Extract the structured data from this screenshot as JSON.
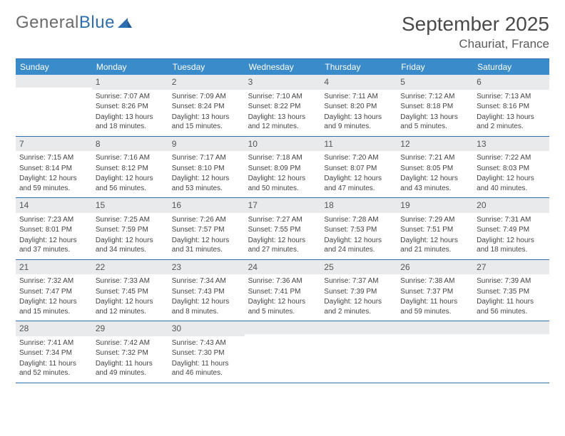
{
  "brand": {
    "part1": "General",
    "part2": "Blue"
  },
  "title": "September 2025",
  "location": "Chauriat, France",
  "colors": {
    "header_bg": "#3a8bc9",
    "border": "#2f6fb0",
    "daynum_bg": "#e9eaeb",
    "text": "#444444",
    "title_text": "#4a4a4a"
  },
  "weekdays": [
    "Sunday",
    "Monday",
    "Tuesday",
    "Wednesday",
    "Thursday",
    "Friday",
    "Saturday"
  ],
  "weeks": [
    [
      null,
      {
        "n": "1",
        "sunrise": "Sunrise: 7:07 AM",
        "sunset": "Sunset: 8:26 PM",
        "daylight": "Daylight: 13 hours and 18 minutes."
      },
      {
        "n": "2",
        "sunrise": "Sunrise: 7:09 AM",
        "sunset": "Sunset: 8:24 PM",
        "daylight": "Daylight: 13 hours and 15 minutes."
      },
      {
        "n": "3",
        "sunrise": "Sunrise: 7:10 AM",
        "sunset": "Sunset: 8:22 PM",
        "daylight": "Daylight: 13 hours and 12 minutes."
      },
      {
        "n": "4",
        "sunrise": "Sunrise: 7:11 AM",
        "sunset": "Sunset: 8:20 PM",
        "daylight": "Daylight: 13 hours and 9 minutes."
      },
      {
        "n": "5",
        "sunrise": "Sunrise: 7:12 AM",
        "sunset": "Sunset: 8:18 PM",
        "daylight": "Daylight: 13 hours and 5 minutes."
      },
      {
        "n": "6",
        "sunrise": "Sunrise: 7:13 AM",
        "sunset": "Sunset: 8:16 PM",
        "daylight": "Daylight: 13 hours and 2 minutes."
      }
    ],
    [
      {
        "n": "7",
        "sunrise": "Sunrise: 7:15 AM",
        "sunset": "Sunset: 8:14 PM",
        "daylight": "Daylight: 12 hours and 59 minutes."
      },
      {
        "n": "8",
        "sunrise": "Sunrise: 7:16 AM",
        "sunset": "Sunset: 8:12 PM",
        "daylight": "Daylight: 12 hours and 56 minutes."
      },
      {
        "n": "9",
        "sunrise": "Sunrise: 7:17 AM",
        "sunset": "Sunset: 8:10 PM",
        "daylight": "Daylight: 12 hours and 53 minutes."
      },
      {
        "n": "10",
        "sunrise": "Sunrise: 7:18 AM",
        "sunset": "Sunset: 8:09 PM",
        "daylight": "Daylight: 12 hours and 50 minutes."
      },
      {
        "n": "11",
        "sunrise": "Sunrise: 7:20 AM",
        "sunset": "Sunset: 8:07 PM",
        "daylight": "Daylight: 12 hours and 47 minutes."
      },
      {
        "n": "12",
        "sunrise": "Sunrise: 7:21 AM",
        "sunset": "Sunset: 8:05 PM",
        "daylight": "Daylight: 12 hours and 43 minutes."
      },
      {
        "n": "13",
        "sunrise": "Sunrise: 7:22 AM",
        "sunset": "Sunset: 8:03 PM",
        "daylight": "Daylight: 12 hours and 40 minutes."
      }
    ],
    [
      {
        "n": "14",
        "sunrise": "Sunrise: 7:23 AM",
        "sunset": "Sunset: 8:01 PM",
        "daylight": "Daylight: 12 hours and 37 minutes."
      },
      {
        "n": "15",
        "sunrise": "Sunrise: 7:25 AM",
        "sunset": "Sunset: 7:59 PM",
        "daylight": "Daylight: 12 hours and 34 minutes."
      },
      {
        "n": "16",
        "sunrise": "Sunrise: 7:26 AM",
        "sunset": "Sunset: 7:57 PM",
        "daylight": "Daylight: 12 hours and 31 minutes."
      },
      {
        "n": "17",
        "sunrise": "Sunrise: 7:27 AM",
        "sunset": "Sunset: 7:55 PM",
        "daylight": "Daylight: 12 hours and 27 minutes."
      },
      {
        "n": "18",
        "sunrise": "Sunrise: 7:28 AM",
        "sunset": "Sunset: 7:53 PM",
        "daylight": "Daylight: 12 hours and 24 minutes."
      },
      {
        "n": "19",
        "sunrise": "Sunrise: 7:29 AM",
        "sunset": "Sunset: 7:51 PM",
        "daylight": "Daylight: 12 hours and 21 minutes."
      },
      {
        "n": "20",
        "sunrise": "Sunrise: 7:31 AM",
        "sunset": "Sunset: 7:49 PM",
        "daylight": "Daylight: 12 hours and 18 minutes."
      }
    ],
    [
      {
        "n": "21",
        "sunrise": "Sunrise: 7:32 AM",
        "sunset": "Sunset: 7:47 PM",
        "daylight": "Daylight: 12 hours and 15 minutes."
      },
      {
        "n": "22",
        "sunrise": "Sunrise: 7:33 AM",
        "sunset": "Sunset: 7:45 PM",
        "daylight": "Daylight: 12 hours and 12 minutes."
      },
      {
        "n": "23",
        "sunrise": "Sunrise: 7:34 AM",
        "sunset": "Sunset: 7:43 PM",
        "daylight": "Daylight: 12 hours and 8 minutes."
      },
      {
        "n": "24",
        "sunrise": "Sunrise: 7:36 AM",
        "sunset": "Sunset: 7:41 PM",
        "daylight": "Daylight: 12 hours and 5 minutes."
      },
      {
        "n": "25",
        "sunrise": "Sunrise: 7:37 AM",
        "sunset": "Sunset: 7:39 PM",
        "daylight": "Daylight: 12 hours and 2 minutes."
      },
      {
        "n": "26",
        "sunrise": "Sunrise: 7:38 AM",
        "sunset": "Sunset: 7:37 PM",
        "daylight": "Daylight: 11 hours and 59 minutes."
      },
      {
        "n": "27",
        "sunrise": "Sunrise: 7:39 AM",
        "sunset": "Sunset: 7:35 PM",
        "daylight": "Daylight: 11 hours and 56 minutes."
      }
    ],
    [
      {
        "n": "28",
        "sunrise": "Sunrise: 7:41 AM",
        "sunset": "Sunset: 7:34 PM",
        "daylight": "Daylight: 11 hours and 52 minutes."
      },
      {
        "n": "29",
        "sunrise": "Sunrise: 7:42 AM",
        "sunset": "Sunset: 7:32 PM",
        "daylight": "Daylight: 11 hours and 49 minutes."
      },
      {
        "n": "30",
        "sunrise": "Sunrise: 7:43 AM",
        "sunset": "Sunset: 7:30 PM",
        "daylight": "Daylight: 11 hours and 46 minutes."
      },
      null,
      null,
      null,
      null
    ]
  ]
}
